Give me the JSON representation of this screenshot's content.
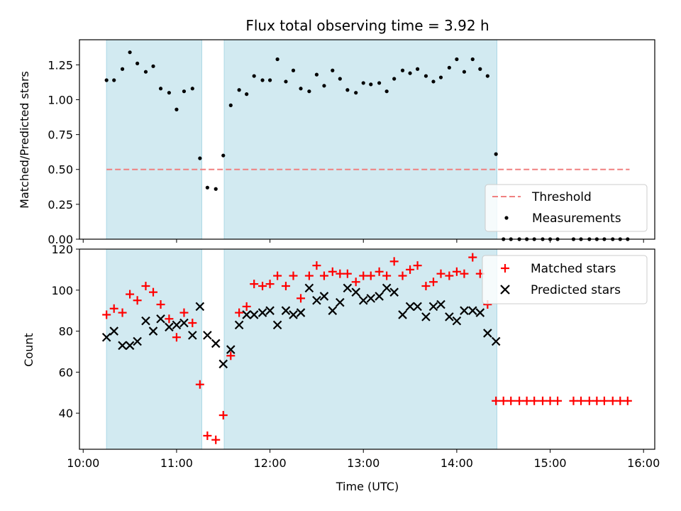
{
  "chart_data": {
    "type": "scatter",
    "title": "Flux total observing time = 3.92 h",
    "xlabel": "Time (UTC)",
    "x_tick_labels": [
      "10:00",
      "11:00",
      "12:00",
      "13:00",
      "14:00",
      "15:00",
      "16:00"
    ],
    "x_ticks_hours": [
      10,
      11,
      12,
      13,
      14,
      15,
      16
    ],
    "xlim_hours": [
      9.96,
      16.12
    ],
    "shaded_intervals_hours": [
      [
        10.25,
        11.27
      ],
      [
        11.51,
        14.43
      ]
    ],
    "shade_color": "#add8e6",
    "panels": [
      {
        "ylabel": "Matched/Predicted stars",
        "ylim": [
          0,
          1.43
        ],
        "y_ticks": [
          0.0,
          0.25,
          0.5,
          0.75,
          1.0,
          1.25
        ],
        "y_tick_labels": [
          "0.00",
          "0.25",
          "0.50",
          "0.75",
          "1.00",
          "1.25"
        ],
        "legend": {
          "location": "lower-right",
          "entries": [
            "Threshold",
            "Measurements"
          ]
        },
        "threshold": {
          "name": "Threshold",
          "value": 0.5,
          "x_range_hours": [
            10.25,
            15.85
          ],
          "color": "#f08080"
        },
        "series": [
          {
            "name": "Measurements",
            "color": "#000000",
            "points": [
              [
                10.25,
                1.14
              ],
              [
                10.33,
                1.14
              ],
              [
                10.42,
                1.22
              ],
              [
                10.5,
                1.34
              ],
              [
                10.58,
                1.26
              ],
              [
                10.67,
                1.2
              ],
              [
                10.75,
                1.24
              ],
              [
                10.83,
                1.08
              ],
              [
                10.92,
                1.05
              ],
              [
                11.0,
                0.93
              ],
              [
                11.08,
                1.06
              ],
              [
                11.17,
                1.08
              ],
              [
                11.25,
                0.58
              ],
              [
                11.33,
                0.37
              ],
              [
                11.42,
                0.36
              ],
              [
                11.5,
                0.6
              ],
              [
                11.58,
                0.96
              ],
              [
                11.67,
                1.07
              ],
              [
                11.75,
                1.04
              ],
              [
                11.83,
                1.17
              ],
              [
                11.92,
                1.14
              ],
              [
                12.0,
                1.14
              ],
              [
                12.08,
                1.29
              ],
              [
                12.17,
                1.13
              ],
              [
                12.25,
                1.21
              ],
              [
                12.33,
                1.08
              ],
              [
                12.42,
                1.06
              ],
              [
                12.5,
                1.18
              ],
              [
                12.58,
                1.1
              ],
              [
                12.67,
                1.21
              ],
              [
                12.75,
                1.15
              ],
              [
                12.83,
                1.07
              ],
              [
                12.92,
                1.05
              ],
              [
                13.0,
                1.12
              ],
              [
                13.08,
                1.11
              ],
              [
                13.17,
                1.12
              ],
              [
                13.25,
                1.06
              ],
              [
                13.33,
                1.15
              ],
              [
                13.42,
                1.21
              ],
              [
                13.5,
                1.19
              ],
              [
                13.58,
                1.22
              ],
              [
                13.67,
                1.17
              ],
              [
                13.75,
                1.13
              ],
              [
                13.83,
                1.16
              ],
              [
                13.92,
                1.23
              ],
              [
                14.0,
                1.29
              ],
              [
                14.08,
                1.2
              ],
              [
                14.17,
                1.29
              ],
              [
                14.25,
                1.22
              ],
              [
                14.33,
                1.17
              ],
              [
                14.42,
                0.61
              ],
              [
                14.5,
                0.0
              ],
              [
                14.58,
                0.0
              ],
              [
                14.67,
                0.0
              ],
              [
                14.75,
                0.0
              ],
              [
                14.83,
                0.0
              ],
              [
                14.92,
                0.0
              ],
              [
                15.0,
                0.0
              ],
              [
                15.08,
                0.0
              ],
              [
                15.25,
                0.0
              ],
              [
                15.33,
                0.0
              ],
              [
                15.42,
                0.0
              ],
              [
                15.5,
                0.0
              ],
              [
                15.58,
                0.0
              ],
              [
                15.67,
                0.0
              ],
              [
                15.75,
                0.0
              ],
              [
                15.83,
                0.0
              ]
            ]
          }
        ]
      },
      {
        "ylabel": "Count",
        "ylim": [
          22.4,
          120
        ],
        "y_ticks": [
          40,
          60,
          80,
          100,
          120
        ],
        "y_tick_labels": [
          "40",
          "60",
          "80",
          "100",
          "120"
        ],
        "legend": {
          "location": "upper-right",
          "entries": [
            "Matched stars",
            "Predicted stars"
          ]
        },
        "series": [
          {
            "name": "Matched stars",
            "marker": "+",
            "color": "#ff0000",
            "points": [
              [
                10.25,
                88
              ],
              [
                10.33,
                91
              ],
              [
                10.42,
                89
              ],
              [
                10.5,
                98
              ],
              [
                10.58,
                95
              ],
              [
                10.67,
                102
              ],
              [
                10.75,
                99
              ],
              [
                10.83,
                93
              ],
              [
                10.92,
                86
              ],
              [
                11.0,
                77
              ],
              [
                11.08,
                89
              ],
              [
                11.17,
                84
              ],
              [
                11.25,
                54
              ],
              [
                11.33,
                29
              ],
              [
                11.42,
                27
              ],
              [
                11.5,
                39
              ],
              [
                11.58,
                68
              ],
              [
                11.67,
                89
              ],
              [
                11.75,
                92
              ],
              [
                11.83,
                103
              ],
              [
                11.92,
                102
              ],
              [
                12.0,
                103
              ],
              [
                12.08,
                107
              ],
              [
                12.17,
                102
              ],
              [
                12.25,
                107
              ],
              [
                12.33,
                96
              ],
              [
                12.42,
                107
              ],
              [
                12.5,
                112
              ],
              [
                12.58,
                107
              ],
              [
                12.67,
                109
              ],
              [
                12.75,
                108
              ],
              [
                12.83,
                108
              ],
              [
                12.92,
                104
              ],
              [
                13.0,
                107
              ],
              [
                13.08,
                107
              ],
              [
                13.17,
                109
              ],
              [
                13.25,
                107
              ],
              [
                13.33,
                114
              ],
              [
                13.42,
                107
              ],
              [
                13.5,
                110
              ],
              [
                13.58,
                112
              ],
              [
                13.67,
                102
              ],
              [
                13.75,
                104
              ],
              [
                13.83,
                108
              ],
              [
                13.92,
                107
              ],
              [
                14.0,
                109
              ],
              [
                14.08,
                108
              ],
              [
                14.17,
                116
              ],
              [
                14.25,
                108
              ],
              [
                14.33,
                93
              ],
              [
                14.42,
                46
              ],
              [
                14.5,
                46
              ],
              [
                14.58,
                46
              ],
              [
                14.67,
                46
              ],
              [
                14.75,
                46
              ],
              [
                14.83,
                46
              ],
              [
                14.92,
                46
              ],
              [
                15.0,
                46
              ],
              [
                15.08,
                46
              ],
              [
                15.25,
                46
              ],
              [
                15.33,
                46
              ],
              [
                15.42,
                46
              ],
              [
                15.5,
                46
              ],
              [
                15.58,
                46
              ],
              [
                15.67,
                46
              ],
              [
                15.75,
                46
              ],
              [
                15.83,
                46
              ]
            ]
          },
          {
            "name": "Predicted stars",
            "marker": "x",
            "color": "#000000",
            "points": [
              [
                10.25,
                77
              ],
              [
                10.33,
                80
              ],
              [
                10.42,
                73
              ],
              [
                10.5,
                73
              ],
              [
                10.58,
                75
              ],
              [
                10.67,
                85
              ],
              [
                10.75,
                80
              ],
              [
                10.83,
                86
              ],
              [
                10.92,
                82
              ],
              [
                11.0,
                83
              ],
              [
                11.08,
                84
              ],
              [
                11.17,
                78
              ],
              [
                11.25,
                92
              ],
              [
                11.33,
                78
              ],
              [
                11.42,
                74
              ],
              [
                11.5,
                64
              ],
              [
                11.58,
                71
              ],
              [
                11.67,
                83
              ],
              [
                11.75,
                88
              ],
              [
                11.83,
                88
              ],
              [
                11.92,
                89
              ],
              [
                12.0,
                90
              ],
              [
                12.08,
                83
              ],
              [
                12.17,
                90
              ],
              [
                12.25,
                88
              ],
              [
                12.33,
                89
              ],
              [
                12.42,
                101
              ],
              [
                12.5,
                95
              ],
              [
                12.58,
                97
              ],
              [
                12.67,
                90
              ],
              [
                12.75,
                94
              ],
              [
                12.83,
                101
              ],
              [
                12.92,
                99
              ],
              [
                13.0,
                95
              ],
              [
                13.08,
                96
              ],
              [
                13.17,
                97
              ],
              [
                13.25,
                101
              ],
              [
                13.33,
                99
              ],
              [
                13.42,
                88
              ],
              [
                13.5,
                92
              ],
              [
                13.58,
                92
              ],
              [
                13.67,
                87
              ],
              [
                13.75,
                92
              ],
              [
                13.83,
                93
              ],
              [
                13.92,
                87
              ],
              [
                14.0,
                85
              ],
              [
                14.08,
                90
              ],
              [
                14.17,
                90
              ],
              [
                14.25,
                89
              ],
              [
                14.33,
                79
              ],
              [
                14.42,
                75
              ]
            ]
          }
        ]
      }
    ]
  }
}
